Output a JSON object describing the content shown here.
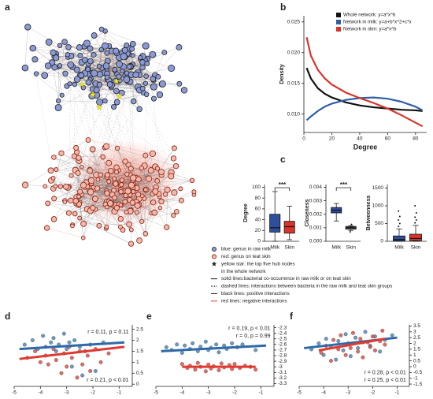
{
  "panels": [
    "a",
    "b",
    "c",
    "d",
    "e",
    "f"
  ],
  "network": {
    "legend": [
      "blue: genus in raw milk",
      "red: genus on teat skin",
      "yellow star: the top five hub nodes",
      "in the whole network",
      "solid lines:bacterial co-occurrence in raw milk or on teat skin",
      "dashed lines: interactions between bacteria in the raw milk and teat skin groups",
      "black lines: positive interactions",
      "red lines: negative interactions"
    ]
  },
  "chart_data": [
    {
      "type": "line",
      "xlabel": "Degree",
      "ylabel": "Density",
      "x": [
        2,
        5,
        10,
        15,
        20,
        30,
        40,
        50,
        60,
        70,
        80,
        85
      ],
      "xlim": [
        0,
        88
      ],
      "xticks": [
        0,
        20,
        40,
        60,
        80
      ],
      "ylim": [
        0.007,
        0.026
      ],
      "yticks": [
        {
          "value": 0.01,
          "label": "0.010"
        },
        {
          "value": 0.015,
          "label": "0.015"
        },
        {
          "value": 0.02,
          "label": "0.020"
        },
        {
          "value": 0.025,
          "label": "0.025"
        }
      ],
      "legend": "top-right",
      "series": [
        {
          "name": "Whole network: y=a*x^b",
          "color": "#111111",
          "values": [
            0.0175,
            0.0158,
            0.0142,
            0.0133,
            0.0127,
            0.0119,
            0.0114,
            0.0111,
            0.0109,
            0.0107,
            0.0106,
            0.0105
          ]
        },
        {
          "name": "Network in milk: y=a+b*x^2+c*x",
          "color": "#2f5fa8",
          "values": [
            0.009,
            0.0096,
            0.0105,
            0.0112,
            0.0117,
            0.0123,
            0.0126,
            0.0127,
            0.0125,
            0.012,
            0.0112,
            0.0106
          ]
        },
        {
          "name": "Network in skin: y=a*x^b",
          "color": "#d9342b",
          "values": [
            0.0225,
            0.0195,
            0.0172,
            0.0158,
            0.0148,
            0.0135,
            0.0126,
            0.0118,
            0.0109,
            0.0098,
            0.0086,
            0.008
          ]
        }
      ]
    },
    {
      "type": "box",
      "ylabel": "Degree",
      "categories": [
        "Milk",
        "Skin"
      ],
      "annotation": "***",
      "ylim": [
        0,
        105
      ],
      "yticks": [
        0,
        20,
        40,
        60,
        80,
        100
      ],
      "boxes": [
        {
          "color": "#2f4f9c",
          "min": 0,
          "q1": 17,
          "median": 25,
          "q3": 50,
          "max": 92,
          "outliers": []
        },
        {
          "color": "#d9342b",
          "min": 3,
          "q1": 15,
          "median": 27,
          "q3": 37,
          "max": 65,
          "outliers": []
        }
      ]
    },
    {
      "type": "box",
      "ylabel": "Closeness",
      "categories": [
        "Milk",
        "Skin"
      ],
      "annotation": "***",
      "ylim": [
        0,
        0.0042
      ],
      "yticks": [
        {
          "value": 0,
          "label": "0.000"
        },
        {
          "value": 0.001,
          "label": "0.001"
        },
        {
          "value": 0.002,
          "label": "0.002"
        },
        {
          "value": 0.003,
          "label": "0.003"
        },
        {
          "value": 0.004,
          "label": "0.004"
        }
      ],
      "boxes": [
        {
          "color": "#2f4f9c",
          "min": 0.0015,
          "q1": 0.0021,
          "median": 0.0023,
          "q3": 0.0025,
          "max": 0.0028,
          "outliers": []
        },
        {
          "color": "#555555",
          "min": 0.0008,
          "q1": 0.0009,
          "median": 0.001,
          "q3": 0.0011,
          "max": 0.00115,
          "outliers": [
            0.0007,
            0.00125
          ]
        }
      ]
    },
    {
      "type": "box",
      "ylabel": "Betweenness",
      "categories": [
        "Milk",
        "Skin"
      ],
      "ylim": [
        0,
        1600
      ],
      "yticks": [
        0,
        500,
        1000,
        1500
      ],
      "boxes": [
        {
          "color": "#2f4f9c",
          "min": 0,
          "q1": 10,
          "median": 50,
          "q3": 150,
          "max": 350,
          "outliers": [
            420,
            500,
            600,
            700,
            850
          ]
        },
        {
          "color": "#d9342b",
          "min": 0,
          "q1": 20,
          "median": 80,
          "q3": 200,
          "max": 450,
          "outliers": [
            520,
            600,
            680,
            800,
            1000
          ]
        }
      ]
    },
    {
      "type": "scatter",
      "xlim": [
        -5,
        -0.5
      ],
      "xticks": [
        -5,
        -4,
        -3,
        -2,
        -1
      ],
      "ylim": [
        -0.1,
        2.7
      ],
      "yticks": [
        0,
        0.5,
        1,
        1.5,
        2,
        2.5
      ],
      "series": [
        {
          "color": "#4a7fb5",
          "x": [
            -4.6,
            -4.3,
            -4.1,
            -3.9,
            -3.8,
            -3.6,
            -3.5,
            -3.4,
            -3.3,
            -3.1,
            -3.0,
            -2.9,
            -2.8,
            -2.7,
            -2.5,
            -2.4,
            -2.3,
            -2.1,
            -1.9,
            -1.6
          ],
          "y": [
            1.8,
            2.0,
            1.6,
            2.2,
            1.7,
            1.9,
            2.1,
            1.5,
            1.8,
            2.3,
            1.6,
            1.9,
            0.8,
            2.0,
            1.7,
            0.4,
            1.5,
            1.8,
            0.6,
            1.9
          ]
        },
        {
          "color": "#d9463e",
          "x": [
            -4.5,
            -4.2,
            -4.0,
            -3.8,
            -3.7,
            -3.5,
            -3.4,
            -3.2,
            -3.1,
            -3.0,
            -2.9,
            -2.8,
            -2.6,
            -2.5,
            -2.4,
            -2.2,
            -2.1,
            -1.9,
            -1.7,
            -1.4
          ],
          "y": [
            1.2,
            1.5,
            1.0,
            1.3,
            0.9,
            1.6,
            1.1,
            0.5,
            1.4,
            0.8,
            1.7,
            1.2,
            0.3,
            1.5,
            0.9,
            1.3,
            0.6,
            1.6,
            1.0,
            1.4
          ]
        }
      ],
      "fits": [
        {
          "color": "#2e6aa8",
          "x": [
            -4.8,
            -0.8
          ],
          "y": [
            1.6,
            1.9
          ]
        },
        {
          "color": "#e03a30",
          "x": [
            -4.8,
            -0.8
          ],
          "y": [
            1.15,
            1.7
          ]
        }
      ],
      "annotations": [
        {
          "text": "r = 0.11, p = 0.11",
          "color": "#2e6aa8"
        },
        {
          "text": "r = 0.21, p < 0.01",
          "color": "#e03a30"
        }
      ]
    },
    {
      "type": "scatter",
      "xlim": [
        -5,
        -0.5
      ],
      "xticks": [
        -5,
        -4,
        -3,
        -2,
        -1
      ],
      "ylim": [
        -3.35,
        -2.25
      ],
      "yticks": [
        -2.3,
        -2.4,
        -2.5,
        -2.6,
        -2.7,
        -2.8,
        -2.9,
        -3,
        -3.1,
        -3.2,
        -3.3
      ],
      "series": [
        {
          "color": "#4a7fb5",
          "x": [
            -4.6,
            -4.4,
            -4.2,
            -4.0,
            -3.9,
            -3.7,
            -3.6,
            -3.4,
            -3.3,
            -3.1,
            -3.0,
            -2.9,
            -2.7,
            -2.6,
            -2.4,
            -2.3,
            -2.1,
            -1.9,
            -1.7,
            -1.2
          ],
          "y": [
            -2.65,
            -2.7,
            -2.6,
            -2.75,
            -2.62,
            -2.68,
            -2.58,
            -2.72,
            -2.64,
            -2.55,
            -2.7,
            -2.66,
            -2.6,
            -2.74,
            -2.62,
            -2.68,
            -2.58,
            -2.65,
            -2.6,
            -2.7
          ]
        },
        {
          "color": "#d9463e",
          "x": [
            -4.0,
            -3.8,
            -3.7,
            -3.5,
            -3.4,
            -3.3,
            -3.1,
            -3.0,
            -2.9,
            -2.8,
            -2.6,
            -2.5,
            -2.4,
            -2.2,
            -2.1,
            -2.0,
            -1.8,
            -1.6,
            -1.4,
            -1.2
          ],
          "y": [
            -2.95,
            -3.02,
            -2.98,
            -3.05,
            -2.93,
            -3.0,
            -3.08,
            -2.96,
            -3.03,
            -2.99,
            -3.06,
            -2.94,
            -3.01,
            -2.97,
            -3.04,
            -2.95,
            -3.02,
            -2.98,
            -3.0,
            -3.05
          ]
        }
      ],
      "fits": [
        {
          "color": "#2e6aa8",
          "x": [
            -4.8,
            -0.8
          ],
          "y": [
            -2.72,
            -2.62
          ]
        },
        {
          "color": "#e03a30",
          "x": [
            -4.0,
            -1.2
          ],
          "y": [
            -3.0,
            -3.0
          ]
        }
      ],
      "annotations": [
        {
          "text": "r = 0.19, p < 0.01",
          "color": "#2e6aa8"
        },
        {
          "text": "r = 0, p = 0.99",
          "color": "#e03a30"
        }
      ]
    },
    {
      "type": "scatter",
      "xlim": [
        -5,
        -0.5
      ],
      "xticks": [
        -5,
        -4,
        -3,
        -2,
        -1
      ],
      "ylim": [
        -1.7,
        3.6
      ],
      "yticks": [
        3.5,
        3,
        2.5,
        2,
        1.5,
        1,
        0.5,
        0,
        -0.5,
        -1,
        -1.5
      ],
      "series": [
        {
          "color": "#4a7fb5",
          "x": [
            -4.5,
            -4.2,
            -4.0,
            -3.9,
            -3.7,
            -3.5,
            -3.4,
            -3.2,
            -3.1,
            -3.0,
            -2.9,
            -2.7,
            -2.6,
            -2.4,
            -2.3,
            -2.1,
            -1.9,
            -1.7,
            -1.5,
            -1.2
          ],
          "y": [
            1.5,
            2.0,
            1.0,
            2.4,
            1.7,
            0.6,
            2.2,
            1.4,
            2.8,
            1.9,
            0.9,
            2.5,
            1.6,
            2.1,
            3.0,
            1.8,
            2.6,
            1.3,
            2.3,
            2.7
          ]
        },
        {
          "color": "#d9463e",
          "x": [
            -4.1,
            -3.9,
            -3.7,
            -3.6,
            -3.4,
            -3.3,
            -3.1,
            -3.0,
            -2.9,
            -2.8,
            -2.6,
            -2.5,
            -2.4,
            -2.2,
            -2.1,
            -2.0,
            -1.9,
            -1.7,
            -1.6,
            -1.5
          ],
          "y": [
            1.2,
            1.8,
            0.5,
            2.3,
            1.5,
            2.7,
            1.0,
            2.0,
            1.6,
            2.9,
            1.3,
            2.4,
            0.8,
            2.1,
            1.7,
            2.6,
            1.4,
            2.2,
            3.1,
            1.9
          ]
        }
      ],
      "fits": [
        {
          "color": "#2e6aa8",
          "x": [
            -4.8,
            -1.0
          ],
          "y": [
            1.6,
            2.5
          ]
        },
        {
          "color": "#e03a30",
          "x": [
            -4.2,
            -1.5
          ],
          "y": [
            1.4,
            2.4
          ]
        }
      ],
      "annotations": [
        {
          "text": "r = 0.28, p < 0.01",
          "color": "#2e6aa8"
        },
        {
          "text": "r = 0.25, p < 0.01",
          "color": "#e03a30"
        }
      ]
    }
  ]
}
